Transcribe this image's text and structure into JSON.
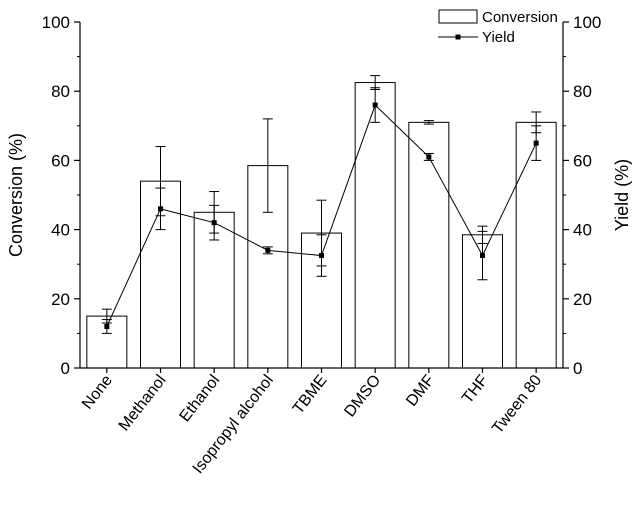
{
  "chart_data": {
    "type": "bar",
    "categories": [
      "None",
      "Methanol",
      "Ethanol",
      "Isopropyl alcohol",
      "TBME",
      "DMSO",
      "DMF",
      "THF",
      "Tween 80"
    ],
    "series": [
      {
        "name": "Conversion",
        "type": "bar",
        "axis": "left",
        "values": [
          15,
          54,
          45,
          58.5,
          39,
          82.5,
          71,
          38.5,
          71
        ],
        "errors": [
          2,
          10,
          6,
          13.5,
          9.5,
          2,
          0.5,
          2.5,
          3
        ]
      },
      {
        "name": "Yield",
        "type": "line",
        "axis": "right",
        "values": [
          12,
          46,
          42,
          34,
          32.5,
          76,
          61,
          32.5,
          65
        ],
        "errors": [
          2,
          6,
          5,
          1,
          6,
          5,
          1,
          7,
          5
        ]
      }
    ],
    "ylabel": "Conversion (%)",
    "y2label": "Yield (%)",
    "ylim": [
      0,
      100
    ],
    "y2lim": [
      0,
      100
    ],
    "yticks": [
      0,
      20,
      40,
      60,
      80,
      100
    ],
    "grid": false,
    "legend_position": "top-right"
  }
}
